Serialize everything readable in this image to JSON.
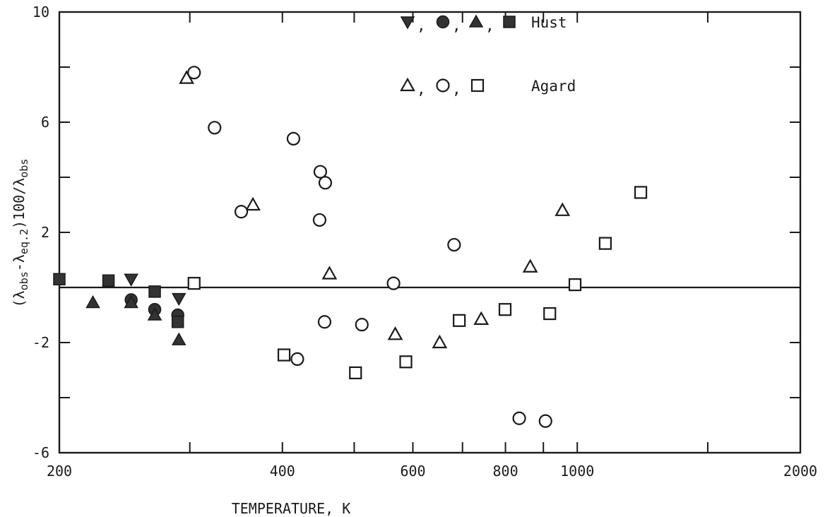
{
  "chart_data": {
    "type": "scatter",
    "title": "",
    "xlabel": "TEMPERATURE, K",
    "ylabel_parts": [
      "(λ",
      "obs",
      "-λ",
      "eq.2",
      ")100/λ",
      "obs"
    ],
    "x_scale": "log",
    "xlim": [
      200,
      2000
    ],
    "ylim": [
      -6,
      10
    ],
    "x_tick_labels": [
      {
        "value": 200,
        "label": "200"
      },
      {
        "value": 400,
        "label": "400"
      },
      {
        "value": 600,
        "label": "600"
      },
      {
        "value": 800,
        "label": "800"
      },
      {
        "value": 1000,
        "label": "1000"
      },
      {
        "value": 2000,
        "label": "2000"
      }
    ],
    "x_minor_ticks": [
      300,
      500,
      700,
      900,
      1500
    ],
    "y_tick_labels": [
      {
        "value": -6,
        "label": "-6"
      },
      {
        "value": -2,
        "label": "-2"
      },
      {
        "value": 2,
        "label": "2"
      },
      {
        "value": 6,
        "label": "6"
      },
      {
        "value": 10,
        "label": "10"
      }
    ],
    "y_minor_ticks": [
      -4,
      0,
      4,
      8
    ],
    "reference_line_y": 0,
    "grid": false,
    "legend": {
      "placement": "top-center",
      "entries": [
        {
          "label": "Hust",
          "symbols": [
            "filled-triangle-down",
            "filled-circle",
            "filled-triangle-up",
            "filled-square"
          ]
        },
        {
          "label": "Agard",
          "symbols": [
            "open-triangle-up",
            "open-circle",
            "open-square"
          ]
        }
      ]
    },
    "series": [
      {
        "name": "Hust",
        "marker": "filled-triangle-down",
        "points": [
          [
            250,
            0.3
          ],
          [
            290,
            -0.4
          ]
        ]
      },
      {
        "name": "Hust",
        "marker": "filled-circle",
        "points": [
          [
            250,
            -0.45
          ],
          [
            269,
            -0.8
          ],
          [
            289,
            -1.0
          ]
        ]
      },
      {
        "name": "Hust",
        "marker": "filled-triangle-up",
        "points": [
          [
            222,
            -0.55
          ],
          [
            250,
            -0.55
          ],
          [
            269,
            -1.0
          ],
          [
            290,
            -1.9
          ]
        ]
      },
      {
        "name": "Hust",
        "marker": "filled-square",
        "points": [
          [
            200,
            0.3
          ],
          [
            233,
            0.25
          ],
          [
            269,
            -0.15
          ],
          [
            289,
            -1.25
          ]
        ]
      },
      {
        "name": "Agard",
        "marker": "open-triangle-up",
        "points": [
          [
            297,
            7.6
          ],
          [
            365,
            3.0
          ],
          [
            463,
            0.5
          ],
          [
            568,
            -1.7
          ],
          [
            652,
            -2.0
          ],
          [
            742,
            -1.15
          ],
          [
            864,
            0.75
          ],
          [
            955,
            2.8
          ]
        ]
      },
      {
        "name": "Agard",
        "marker": "open-circle",
        "points": [
          [
            304,
            7.8
          ],
          [
            324,
            5.8
          ],
          [
            352,
            2.75
          ],
          [
            414,
            5.4
          ],
          [
            450,
            4.2
          ],
          [
            457,
            3.8
          ],
          [
            449,
            2.45
          ],
          [
            456,
            -1.25
          ],
          [
            512,
            -1.35
          ],
          [
            565,
            0.15
          ],
          [
            682,
            1.55
          ],
          [
            835,
            -4.75
          ],
          [
            906,
            -4.85
          ],
          [
            419,
            -2.6
          ]
        ]
      },
      {
        "name": "Agard",
        "marker": "open-square",
        "points": [
          [
            304,
            0.15
          ],
          [
            402,
            -2.45
          ],
          [
            502,
            -3.1
          ],
          [
            587,
            -2.7
          ],
          [
            693,
            -1.2
          ],
          [
            799,
            -0.8
          ],
          [
            918,
            -0.95
          ],
          [
            993,
            0.1
          ],
          [
            1091,
            1.6
          ],
          [
            1218,
            3.45
          ]
        ]
      }
    ]
  }
}
